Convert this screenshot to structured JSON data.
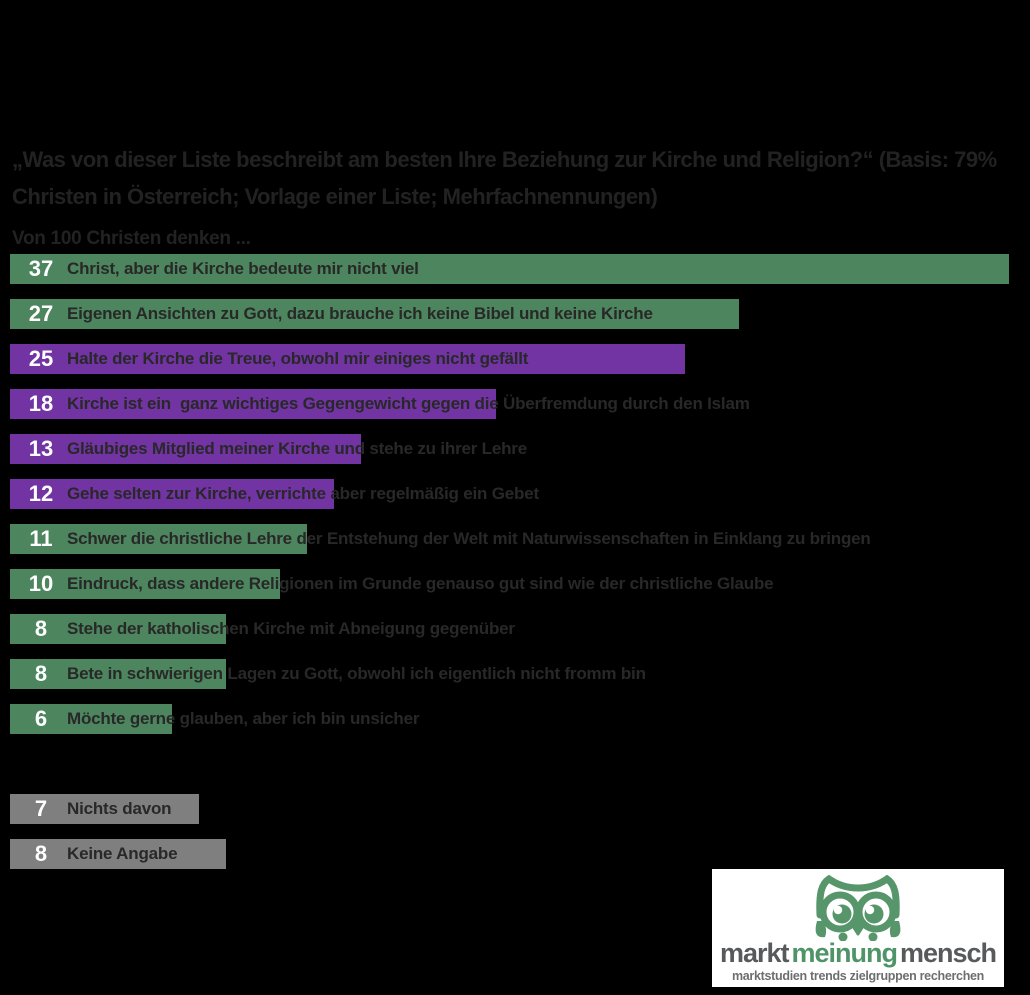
{
  "chart_data": {
    "type": "bar",
    "orientation": "horizontal",
    "title": "„Was von dieser Liste beschreibt am besten Ihre Beziehung zur Kirche und Religion?“ (Basis: 79% Christen in Österreich; Vorlage einer Liste; Mehrfachnennungen)",
    "subtitle": "Von 100 Christen denken ...",
    "xlim": [
      0,
      37.5
    ],
    "grid": false,
    "legend": "none",
    "value_labels": "inside-bar-left",
    "categories": [
      "Christ, aber die Kirche bedeute mir nicht viel",
      "Eigenen Ansichten zu Gott, dazu brauche ich keine Bibel und keine Kirche",
      "Halte der Kirche die Treue, obwohl mir einiges nicht gefällt",
      "Kirche ist ein  ganz wichtiges Gegengewicht gegen die Überfremdung durch den Islam",
      "Gläubiges Mitglied meiner Kirche und stehe zu ihrer Lehre",
      "Gehe selten zur Kirche, verrichte aber regelmäßig ein Gebet",
      "Schwer die christliche Lehre der Entstehung der Welt mit Naturwissenschaften in Einklang zu bringen",
      "Eindruck, dass andere Religionen im Grunde genauso gut sind wie der christliche Glaube",
      "Stehe der katholischen Kirche mit Abneigung gegenüber",
      "Bete in schwierigen Lagen zu Gott, obwohl ich eigentlich nicht fromm bin",
      "Möchte gerne glauben, aber ich bin unsicher",
      "Nichts davon",
      "Keine Angabe"
    ],
    "values": [
      37,
      27,
      25,
      18,
      13,
      12,
      11,
      10,
      8,
      8,
      6,
      7,
      8
    ],
    "items": [
      {
        "value": 37,
        "label": "Christ, aber die Kirche bedeute mir nicht viel",
        "color": "green",
        "group": "main"
      },
      {
        "value": 27,
        "label": "Eigenen Ansichten zu Gott, dazu brauche ich keine Bibel und keine Kirche",
        "color": "green",
        "group": "main"
      },
      {
        "value": 25,
        "label": "Halte der Kirche die Treue, obwohl mir einiges nicht gefällt",
        "color": "purple",
        "group": "main"
      },
      {
        "value": 18,
        "label": "Kirche ist ein  ganz wichtiges Gegengewicht gegen die Überfremdung durch den Islam",
        "color": "purple",
        "group": "main"
      },
      {
        "value": 13,
        "label": "Gläubiges Mitglied meiner Kirche und stehe zu ihrer Lehre",
        "color": "purple",
        "group": "main"
      },
      {
        "value": 12,
        "label": "Gehe selten zur Kirche, verrichte aber regelmäßig ein Gebet",
        "color": "purple",
        "group": "main"
      },
      {
        "value": 11,
        "label": "Schwer die christliche Lehre der Entstehung der Welt mit Naturwissenschaften in Einklang zu bringen",
        "color": "green",
        "group": "main"
      },
      {
        "value": 10,
        "label": "Eindruck, dass andere Religionen im Grunde genauso gut sind wie der christliche Glaube",
        "color": "green",
        "group": "main"
      },
      {
        "value": 8,
        "label": "Stehe der katholischen Kirche mit Abneigung gegenüber",
        "color": "green",
        "group": "main"
      },
      {
        "value": 8,
        "label": "Bete in schwierigen Lagen zu Gott, obwohl ich eigentlich nicht fromm bin",
        "color": "green",
        "group": "main"
      },
      {
        "value": 6,
        "label": "Möchte gerne glauben, aber ich bin unsicher",
        "color": "green",
        "group": "main"
      },
      {
        "value": 7,
        "label": "Nichts davon",
        "color": "gray",
        "group": "rest"
      },
      {
        "value": 8,
        "label": "Keine Angabe",
        "color": "gray",
        "group": "rest"
      }
    ]
  },
  "colors": {
    "green": "#4d855e",
    "purple": "#7233a3",
    "gray": "#7f7f7f",
    "background": "#000000",
    "heading_text": "#222222",
    "bar_label_text": "#282828",
    "value_text": "#ffffff",
    "logo_green": "#57966b",
    "logo_gray": "#58595b"
  },
  "logo": {
    "word1": "markt",
    "word2": "meinung",
    "word3": "mensch",
    "tagline": "marktstudien trends zielgruppen recherchen"
  }
}
